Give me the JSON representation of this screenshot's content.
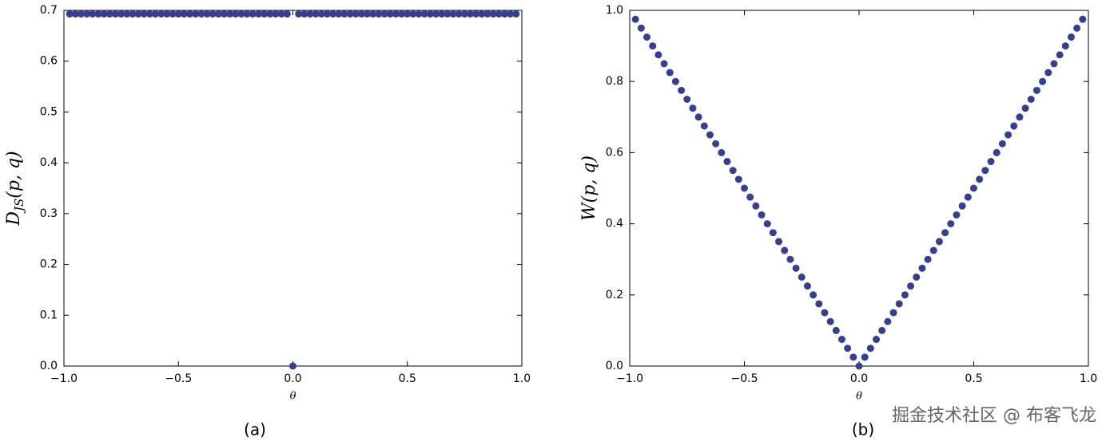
{
  "chart_data": [
    {
      "type": "scatter",
      "color": "#34408f",
      "x_label": "θ",
      "y_label": [
        "D",
        "JS",
        "(p, q)"
      ],
      "caption": "(a)",
      "xlim": [
        -1,
        1
      ],
      "ylim": [
        0,
        0.7
      ],
      "xticks": [
        {
          "value": -1,
          "label": "−1.0"
        },
        {
          "value": -0.5,
          "label": "−0.5"
        },
        {
          "value": 0,
          "label": "0.0"
        },
        0.5,
        {
          "value": 1,
          "label": "1.0"
        }
      ],
      "yticks": [
        {
          "value": 0,
          "label": "0.0"
        },
        0.1,
        0.2,
        0.3,
        0.4,
        0.5,
        0.6,
        0.7
      ],
      "x": [
        -0.975,
        -0.95,
        -0.925,
        -0.9,
        -0.875,
        -0.85,
        -0.825,
        -0.8,
        -0.775,
        -0.75,
        -0.725,
        -0.7,
        -0.675,
        -0.65,
        -0.625,
        -0.6,
        -0.575,
        -0.55,
        -0.525,
        -0.5,
        -0.475,
        -0.45,
        -0.425,
        -0.4,
        -0.375,
        -0.35,
        -0.325,
        -0.3,
        -0.275,
        -0.25,
        -0.225,
        -0.2,
        -0.175,
        -0.15,
        -0.125,
        -0.1,
        -0.075,
        -0.05,
        -0.025,
        0,
        0.025,
        0.05,
        0.075,
        0.1,
        0.125,
        0.15,
        0.175,
        0.2,
        0.225,
        0.25,
        0.275,
        0.3,
        0.325,
        0.35,
        0.375,
        0.4,
        0.425,
        0.45,
        0.475,
        0.5,
        0.525,
        0.55,
        0.575,
        0.6,
        0.625,
        0.65,
        0.675,
        0.7,
        0.725,
        0.75,
        0.775,
        0.8,
        0.825,
        0.85,
        0.875,
        0.9,
        0.925,
        0.95,
        0.975
      ],
      "values": [
        0.693,
        0.693,
        0.693,
        0.693,
        0.693,
        0.693,
        0.693,
        0.693,
        0.693,
        0.693,
        0.693,
        0.693,
        0.693,
        0.693,
        0.693,
        0.693,
        0.693,
        0.693,
        0.693,
        0.693,
        0.693,
        0.693,
        0.693,
        0.693,
        0.693,
        0.693,
        0.693,
        0.693,
        0.693,
        0.693,
        0.693,
        0.693,
        0.693,
        0.693,
        0.693,
        0.693,
        0.693,
        0.693,
        0.693,
        0,
        0.693,
        0.693,
        0.693,
        0.693,
        0.693,
        0.693,
        0.693,
        0.693,
        0.693,
        0.693,
        0.693,
        0.693,
        0.693,
        0.693,
        0.693,
        0.693,
        0.693,
        0.693,
        0.693,
        0.693,
        0.693,
        0.693,
        0.693,
        0.693,
        0.693,
        0.693,
        0.693,
        0.693,
        0.693,
        0.693,
        0.693,
        0.693,
        0.693,
        0.693,
        0.693,
        0.693,
        0.693,
        0.693,
        0.693
      ]
    },
    {
      "type": "scatter",
      "color": "#34408f",
      "x_label": "θ",
      "y_label": [
        "W",
        "(p, q)"
      ],
      "caption": "(b)",
      "xlim": [
        -1,
        1
      ],
      "ylim": [
        0,
        1
      ],
      "xticks": [
        {
          "value": -1,
          "label": "−1.0"
        },
        {
          "value": -0.5,
          "label": "−0.5"
        },
        {
          "value": 0,
          "label": "0.0"
        },
        0.5,
        {
          "value": 1,
          "label": "1.0"
        }
      ],
      "yticks": [
        {
          "value": 0,
          "label": "0.0"
        },
        0.2,
        0.4,
        0.6,
        0.8,
        {
          "value": 1,
          "label": "1.0"
        }
      ],
      "x": [
        -0.975,
        -0.95,
        -0.925,
        -0.9,
        -0.875,
        -0.85,
        -0.825,
        -0.8,
        -0.775,
        -0.75,
        -0.725,
        -0.7,
        -0.675,
        -0.65,
        -0.625,
        -0.6,
        -0.575,
        -0.55,
        -0.525,
        -0.5,
        -0.475,
        -0.45,
        -0.425,
        -0.4,
        -0.375,
        -0.35,
        -0.325,
        -0.3,
        -0.275,
        -0.25,
        -0.225,
        -0.2,
        -0.175,
        -0.15,
        -0.125,
        -0.1,
        -0.075,
        -0.05,
        -0.025,
        0,
        0.025,
        0.05,
        0.075,
        0.1,
        0.125,
        0.15,
        0.175,
        0.2,
        0.225,
        0.25,
        0.275,
        0.3,
        0.325,
        0.35,
        0.375,
        0.4,
        0.425,
        0.45,
        0.475,
        0.5,
        0.525,
        0.55,
        0.575,
        0.6,
        0.625,
        0.65,
        0.675,
        0.7,
        0.725,
        0.75,
        0.775,
        0.8,
        0.825,
        0.85,
        0.875,
        0.9,
        0.925,
        0.95,
        0.975
      ],
      "values": [
        0.975,
        0.95,
        0.925,
        0.9,
        0.875,
        0.85,
        0.825,
        0.8,
        0.775,
        0.75,
        0.725,
        0.7,
        0.675,
        0.65,
        0.625,
        0.6,
        0.575,
        0.55,
        0.525,
        0.5,
        0.475,
        0.45,
        0.425,
        0.4,
        0.375,
        0.35,
        0.325,
        0.3,
        0.275,
        0.25,
        0.225,
        0.2,
        0.175,
        0.15,
        0.125,
        0.1,
        0.075,
        0.05,
        0.025,
        0,
        0.025,
        0.05,
        0.075,
        0.1,
        0.125,
        0.15,
        0.175,
        0.2,
        0.225,
        0.25,
        0.275,
        0.3,
        0.325,
        0.35,
        0.375,
        0.4,
        0.425,
        0.45,
        0.475,
        0.5,
        0.525,
        0.55,
        0.575,
        0.6,
        0.625,
        0.65,
        0.675,
        0.7,
        0.725,
        0.75,
        0.775,
        0.8,
        0.825,
        0.85,
        0.875,
        0.9,
        0.925,
        0.95,
        0.975
      ]
    }
  ],
  "watermark": "掘金技术社区 @ 布客飞龙"
}
